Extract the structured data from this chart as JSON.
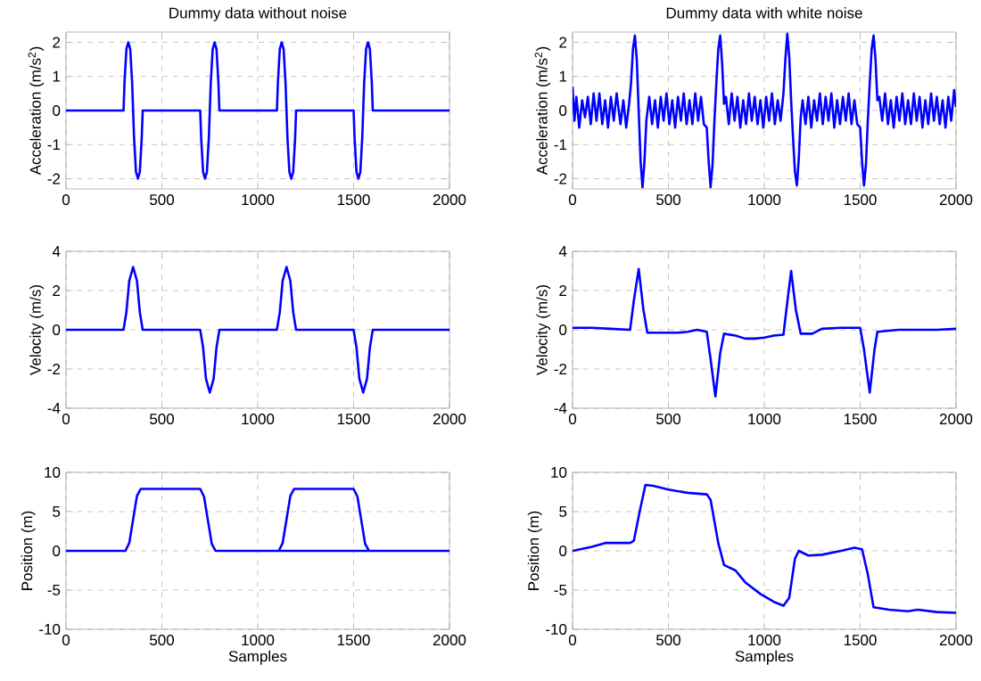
{
  "chart_data": [
    {
      "type": "line",
      "title": "Dummy data without noise",
      "ylabel": "Acceleration (m/s$^{2}$)",
      "grid": true,
      "xlim": [
        0,
        2000
      ],
      "ylim": [
        -2.3,
        2.3
      ],
      "xticks": [
        0,
        500,
        1000,
        1500,
        2000
      ],
      "yticks": [
        -2,
        -1,
        0,
        1,
        2
      ],
      "x": [
        0,
        300,
        305,
        315,
        325,
        335,
        345,
        350,
        355,
        365,
        375,
        385,
        395,
        400,
        700,
        705,
        715,
        725,
        735,
        745,
        750,
        755,
        765,
        775,
        785,
        795,
        800,
        1100,
        1105,
        1115,
        1125,
        1135,
        1145,
        1150,
        1155,
        1165,
        1175,
        1185,
        1195,
        1200,
        1500,
        1505,
        1515,
        1525,
        1535,
        1545,
        1550,
        1555,
        1565,
        1575,
        1585,
        1595,
        1600,
        2000
      ],
      "series": [
        {
          "color": "#0000ff",
          "values": [
            0,
            0,
            0.8,
            1.8,
            2,
            1.8,
            0.8,
            0,
            -0.8,
            -1.8,
            -2,
            -1.8,
            -0.8,
            0,
            0,
            -0.8,
            -1.8,
            -2,
            -1.8,
            -0.8,
            0,
            0.8,
            1.8,
            2,
            1.8,
            0.8,
            0,
            0,
            0.8,
            1.8,
            2,
            1.8,
            0.8,
            0,
            -0.8,
            -1.8,
            -2,
            -1.8,
            -0.8,
            0,
            0,
            -0.8,
            -1.8,
            -2,
            -1.8,
            -0.8,
            0,
            0.8,
            1.8,
            2,
            1.8,
            0.8,
            0,
            0
          ]
        }
      ]
    },
    {
      "type": "line",
      "title": "Dummy data with white noise",
      "ylabel": "Acceleration (m/s$^{2}$)",
      "grid": true,
      "xlim": [
        0,
        2000
      ],
      "ylim": [
        -2.3,
        2.3
      ],
      "xticks": [
        0,
        500,
        1000,
        1500,
        2000
      ],
      "yticks": [
        -2,
        -1,
        0,
        1,
        2
      ],
      "x": [
        0,
        10,
        20,
        35,
        50,
        65,
        80,
        95,
        110,
        125,
        140,
        155,
        170,
        185,
        200,
        215,
        230,
        250,
        265,
        280,
        295,
        305,
        315,
        325,
        335,
        345,
        355,
        365,
        375,
        385,
        400,
        415,
        430,
        445,
        460,
        475,
        490,
        505,
        520,
        535,
        550,
        565,
        580,
        595,
        610,
        625,
        640,
        655,
        670,
        685,
        700,
        710,
        720,
        730,
        740,
        750,
        760,
        770,
        780,
        790,
        800,
        815,
        830,
        845,
        860,
        875,
        890,
        905,
        920,
        935,
        950,
        965,
        980,
        995,
        1010,
        1025,
        1040,
        1055,
        1070,
        1085,
        1100,
        1110,
        1120,
        1130,
        1140,
        1150,
        1160,
        1170,
        1180,
        1190,
        1200,
        1215,
        1230,
        1245,
        1260,
        1275,
        1290,
        1305,
        1320,
        1335,
        1350,
        1365,
        1380,
        1395,
        1410,
        1425,
        1440,
        1455,
        1470,
        1485,
        1500,
        1510,
        1520,
        1530,
        1540,
        1550,
        1560,
        1570,
        1580,
        1590,
        1600,
        1615,
        1630,
        1645,
        1660,
        1675,
        1690,
        1705,
        1720,
        1735,
        1750,
        1765,
        1780,
        1795,
        1810,
        1825,
        1840,
        1855,
        1870,
        1885,
        1900,
        1915,
        1930,
        1945,
        1960,
        1975,
        1990,
        2000
      ],
      "series": [
        {
          "color": "#0000ff",
          "values": [
            0.7,
            -0.3,
            0.4,
            -0.5,
            0.3,
            -0.2,
            0.4,
            -0.4,
            0.5,
            -0.3,
            0.5,
            -0.4,
            0.3,
            -0.5,
            0.4,
            -0.3,
            0.5,
            -0.4,
            0.3,
            -0.5,
            0.2,
            0.8,
            1.8,
            2.2,
            1.5,
            0,
            -1.5,
            -2.25,
            -1.5,
            -0.3,
            0.4,
            -0.4,
            0.3,
            -0.5,
            0.4,
            -0.3,
            0.5,
            -0.4,
            0.3,
            -0.5,
            0.4,
            -0.3,
            0.5,
            -0.4,
            0.3,
            -0.4,
            0.5,
            -0.3,
            0.4,
            -0.4,
            -0.5,
            -1.5,
            -2.25,
            -1.6,
            -0.3,
            0.8,
            1.8,
            2.2,
            1.4,
            0.2,
            0.4,
            -0.4,
            0.5,
            -0.3,
            0.4,
            -0.5,
            0.3,
            -0.4,
            0.5,
            -0.3,
            0.4,
            -0.4,
            0.3,
            -0.5,
            0.4,
            -0.3,
            0.5,
            -0.4,
            0.3,
            -0.3,
            0.5,
            1.5,
            2.25,
            1.6,
            0.3,
            -0.8,
            -1.8,
            -2.2,
            -1.4,
            -0.2,
            0.3,
            -0.4,
            0.4,
            -0.5,
            0.3,
            -0.3,
            0.5,
            -0.4,
            0.4,
            -0.3,
            0.5,
            -0.5,
            0.3,
            -0.4,
            0.4,
            -0.3,
            0.5,
            -0.4,
            0.3,
            -0.4,
            -0.5,
            -1.5,
            -2.2,
            -1.6,
            -0.3,
            0.8,
            1.8,
            2.2,
            1.5,
            0.3,
            0.4,
            -0.3,
            0.5,
            -0.4,
            0.3,
            -0.5,
            0.4,
            -0.3,
            0.5,
            -0.4,
            0.3,
            -0.4,
            0.5,
            -0.3,
            0.4,
            -0.5,
            0.3,
            -0.4,
            0.5,
            -0.3,
            0.4,
            -0.4,
            0.3,
            -0.5,
            0.4,
            -0.3,
            0.6,
            0.1
          ]
        }
      ]
    },
    {
      "type": "line",
      "ylabel": "Velocity (m/s)",
      "grid": true,
      "xlim": [
        0,
        2000
      ],
      "ylim": [
        -4,
        4
      ],
      "xticks": [
        0,
        500,
        1000,
        1500,
        2000
      ],
      "yticks": [
        -4,
        -2,
        0,
        2,
        4
      ],
      "x": [
        0,
        300,
        315,
        330,
        350,
        370,
        385,
        400,
        700,
        715,
        730,
        750,
        770,
        785,
        800,
        1100,
        1115,
        1130,
        1150,
        1170,
        1185,
        1200,
        1500,
        1515,
        1530,
        1550,
        1570,
        1585,
        1600,
        2000
      ],
      "series": [
        {
          "color": "#0000ff",
          "values": [
            0,
            0,
            0.9,
            2.5,
            3.2,
            2.5,
            0.9,
            0,
            0,
            -0.9,
            -2.5,
            -3.2,
            -2.5,
            -0.9,
            0,
            0,
            0.9,
            2.5,
            3.2,
            2.5,
            0.9,
            0,
            0,
            -0.9,
            -2.5,
            -3.2,
            -2.5,
            -0.9,
            0,
            0
          ]
        }
      ]
    },
    {
      "type": "line",
      "ylabel": "Velocity (m/s)",
      "grid": true,
      "xlim": [
        0,
        2000
      ],
      "ylim": [
        -4,
        4
      ],
      "xticks": [
        0,
        500,
        1000,
        1500,
        2000
      ],
      "yticks": [
        -4,
        -2,
        0,
        2,
        4
      ],
      "x": [
        0,
        100,
        200,
        300,
        320,
        345,
        370,
        390,
        450,
        550,
        600,
        650,
        700,
        720,
        745,
        770,
        790,
        850,
        900,
        950,
        1000,
        1050,
        1100,
        1115,
        1140,
        1165,
        1190,
        1250,
        1300,
        1400,
        1500,
        1520,
        1550,
        1575,
        1590,
        1650,
        1700,
        1800,
        1900,
        2000
      ],
      "series": [
        {
          "color": "#0000ff",
          "values": [
            0.1,
            0.1,
            0.05,
            0,
            1.5,
            3.1,
            1.0,
            -0.15,
            -0.15,
            -0.15,
            -0.1,
            0,
            -0.1,
            -1.5,
            -3.4,
            -1.2,
            -0.2,
            -0.3,
            -0.45,
            -0.45,
            -0.4,
            -0.3,
            -0.25,
            1.0,
            3.0,
            1.0,
            -0.2,
            -0.2,
            0.05,
            0.1,
            0.1,
            -1.0,
            -3.2,
            -1.0,
            -0.1,
            -0.05,
            0,
            0,
            0,
            0.05
          ]
        }
      ]
    },
    {
      "type": "line",
      "xlabel": "Samples",
      "ylabel": "Position (m)",
      "grid": true,
      "xlim": [
        0,
        2000
      ],
      "ylim": [
        -10,
        10
      ],
      "xticks": [
        0,
        500,
        1000,
        1500,
        2000
      ],
      "yticks": [
        -10,
        -5,
        0,
        5,
        10
      ],
      "x": [
        0,
        310,
        330,
        350,
        370,
        390,
        700,
        720,
        740,
        760,
        780,
        2000
      ],
      "series": [
        {
          "color": "#0000ff",
          "values": [
            0,
            0,
            1,
            4,
            7,
            7.9,
            7.9,
            6.9,
            3.9,
            0.9,
            0,
            0
          ]
        },
        {
          "color": "#0000ff",
          "x": [
            1110,
            1130,
            1150,
            1170,
            1190,
            1500,
            1520,
            1540,
            1560,
            1580
          ],
          "values": [
            0,
            1,
            4,
            7,
            7.9,
            7.9,
            6.9,
            3.9,
            0.9,
            0
          ]
        }
      ]
    },
    {
      "type": "line",
      "xlabel": "Samples",
      "ylabel": "Position (m)",
      "grid": true,
      "xlim": [
        0,
        2000
      ],
      "ylim": [
        -10,
        10
      ],
      "xticks": [
        0,
        500,
        1000,
        1500,
        2000
      ],
      "yticks": [
        -10,
        -5,
        0,
        5,
        10
      ],
      "x": [
        0,
        100,
        170,
        300,
        320,
        350,
        380,
        420,
        500,
        600,
        700,
        720,
        760,
        790,
        850,
        900,
        980,
        1050,
        1100,
        1130,
        1160,
        1180,
        1230,
        1300,
        1400,
        1470,
        1510,
        1540,
        1570,
        1650,
        1750,
        1800,
        1900,
        2000
      ],
      "series": [
        {
          "color": "#0000ff",
          "values": [
            0,
            0.5,
            1.0,
            1.0,
            1.3,
            5,
            8.4,
            8.3,
            7.8,
            7.4,
            7.2,
            6.5,
            1,
            -1.8,
            -2.5,
            -4,
            -5.5,
            -6.5,
            -7,
            -6,
            -1,
            0,
            -0.6,
            -0.5,
            0,
            0.4,
            0.2,
            -3,
            -7.2,
            -7.5,
            -7.7,
            -7.5,
            -7.8,
            -7.9
          ]
        }
      ]
    }
  ]
}
